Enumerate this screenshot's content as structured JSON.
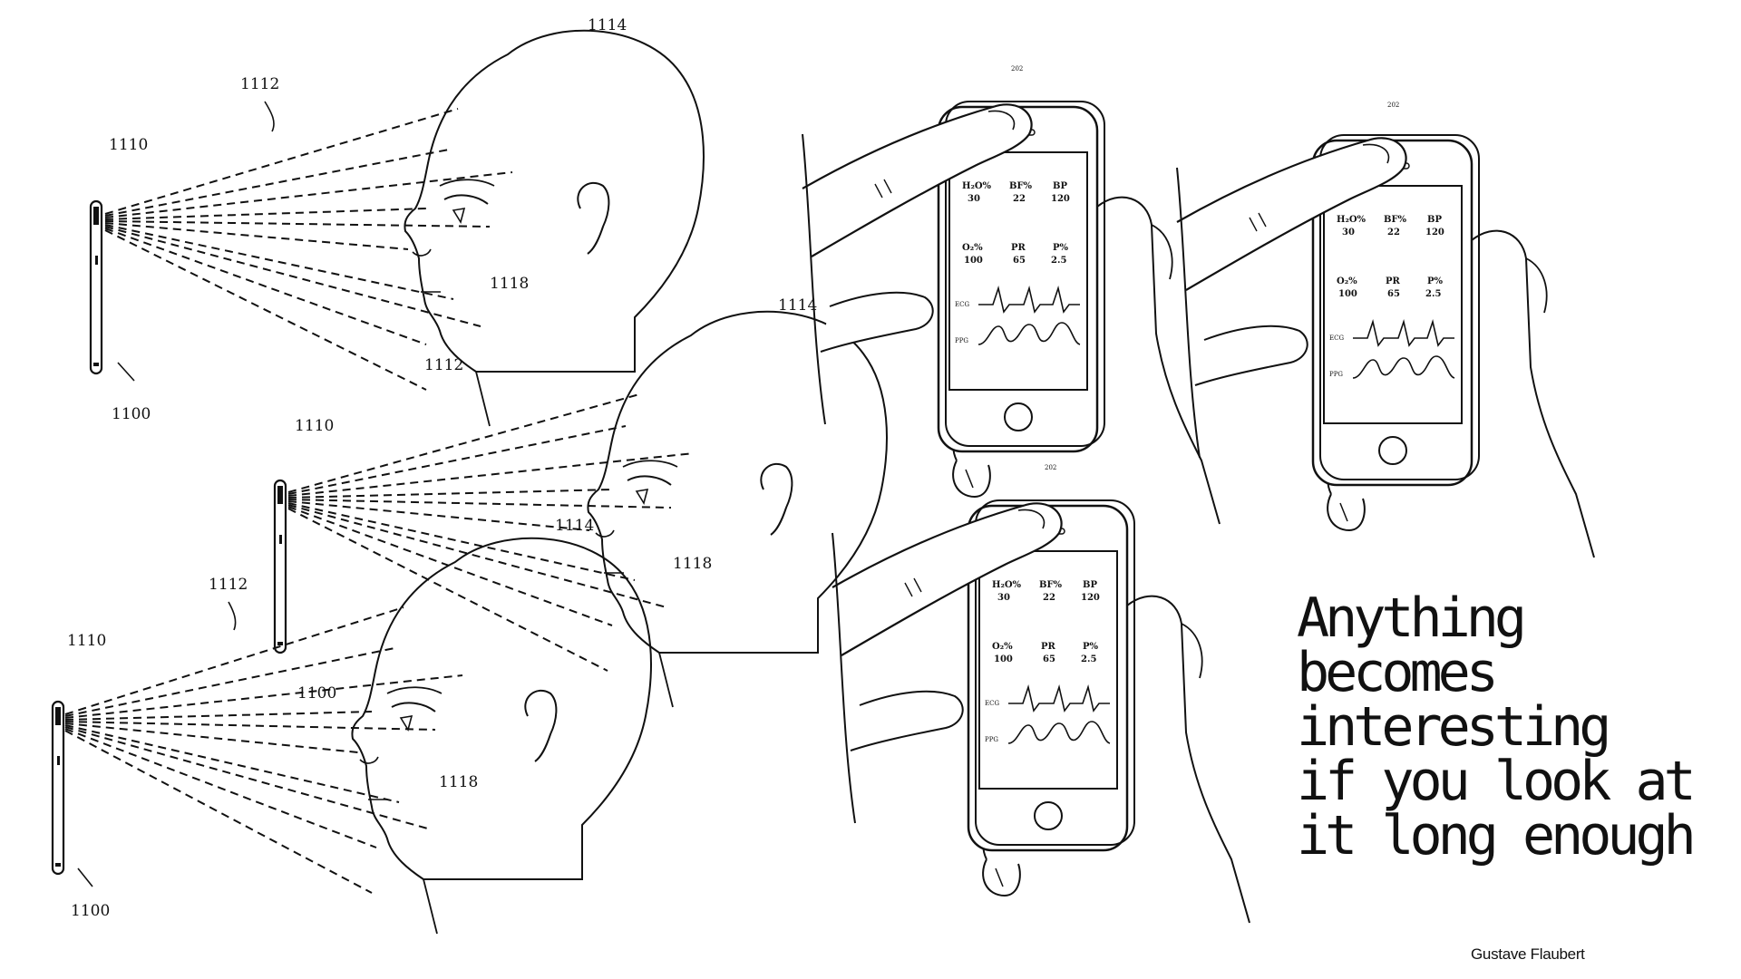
{
  "quote": {
    "lines": [
      "Anything",
      "becomes",
      "interesting",
      "if you look at",
      "it long enough"
    ],
    "author": "Gustave Flaubert"
  },
  "patent_labels": {
    "device": "1110",
    "scan": "1112",
    "head": "1114",
    "feature": "1118",
    "ref_device": "1100",
    "finger": "202"
  },
  "phone_screen": {
    "row1": [
      {
        "label": "H2O%",
        "value": "30"
      },
      {
        "label": "BF%",
        "value": "22"
      },
      {
        "label": "BP",
        "value": "120"
      }
    ],
    "row2": [
      {
        "label": "O2%",
        "value": "100"
      },
      {
        "label": "PR",
        "value": "65"
      },
      {
        "label": "P%",
        "value": "2.5"
      }
    ],
    "ecg_label": "ECG",
    "ppg_label": "PPG"
  },
  "icons": [
    "phone-icon",
    "face-profile-icon",
    "hand-icon",
    "home-button-icon"
  ],
  "colors": {
    "ink": "#111111",
    "background": "#ffffff"
  }
}
